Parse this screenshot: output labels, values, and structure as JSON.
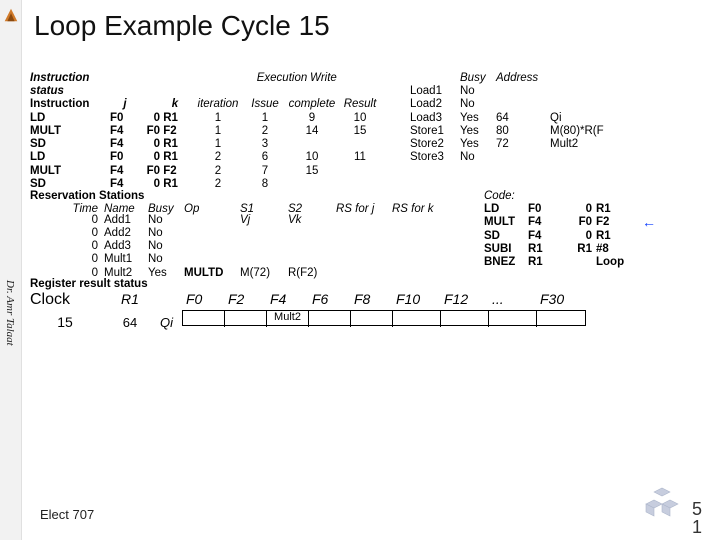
{
  "slide": {
    "title": "Loop Example Cycle 15",
    "author": "Dr. Amr Talaat",
    "course": "Elect 707",
    "page_top": "5",
    "page_bottom": "1"
  },
  "colors": {
    "accent_blue": "#0a3cff",
    "text": "#000000",
    "bg": "#ffffff",
    "stripe": "#f2f2f2"
  },
  "inst_status": {
    "section_label": "Instruction status",
    "headers_top": {
      "exec": "Execution",
      "write": "Write"
    },
    "headers": [
      "Instruction",
      "j",
      "k",
      "iteration",
      "Issue",
      "complete",
      "Result"
    ],
    "rows": [
      {
        "op": "LD",
        "dst": "F0",
        "j": "0",
        "k": "R1",
        "iter": "1",
        "issue": "1",
        "exec": "9",
        "write": "10"
      },
      {
        "op": "MULT",
        "dst": "F4",
        "j": "F0",
        "k": "F2",
        "iter": "1",
        "issue": "2",
        "exec": "14",
        "write": "15"
      },
      {
        "op": "SD",
        "dst": "F4",
        "j": "0",
        "k": "R1",
        "iter": "1",
        "issue": "3",
        "exec": "",
        "write": ""
      },
      {
        "op": "LD",
        "dst": "F0",
        "j": "0",
        "k": "R1",
        "iter": "2",
        "issue": "6",
        "exec": "10",
        "write": "11"
      },
      {
        "op": "MULT",
        "dst": "F4",
        "j": "F0",
        "k": "F2",
        "iter": "2",
        "issue": "7",
        "exec": "15",
        "write": ""
      },
      {
        "op": "SD",
        "dst": "F4",
        "j": "0",
        "k": "R1",
        "iter": "2",
        "issue": "8",
        "exec": "",
        "write": ""
      }
    ]
  },
  "load_store": {
    "headers": [
      "",
      "Busy",
      "Address",
      ""
    ],
    "rows": [
      {
        "name": "Load1",
        "busy": "No",
        "addr": "",
        "qi": ""
      },
      {
        "name": "Load2",
        "busy": "No",
        "addr": "",
        "qi": ""
      },
      {
        "name": "Load3",
        "busy": "Yes",
        "addr": "64",
        "qi": "Qi"
      },
      {
        "name": "Store1",
        "busy": "Yes",
        "addr": "80",
        "qi": "M(80)*R(F"
      },
      {
        "name": "Store2",
        "busy": "Yes",
        "addr": "72",
        "qi": "Mult2"
      },
      {
        "name": "Store3",
        "busy": "No",
        "addr": "",
        "qi": ""
      }
    ]
  },
  "res_stations": {
    "section_label": "Reservation Stations",
    "headers": {
      "time": "Time",
      "name": "Name",
      "busy": "Busy",
      "op": "Op",
      "s1": "S1",
      "s2": "S2",
      "rsj": "RS for j",
      "rsk": "RS for k",
      "vj": "Vj",
      "vk": "Vk"
    },
    "rows": [
      {
        "time": "0",
        "name": "Add1",
        "busy": "No",
        "op": "",
        "vj": "",
        "vk": "",
        "qj": "",
        "qk": ""
      },
      {
        "time": "0",
        "name": "Add2",
        "busy": "No",
        "op": "",
        "vj": "",
        "vk": "",
        "qj": "",
        "qk": ""
      },
      {
        "time": "0",
        "name": "Add3",
        "busy": "No",
        "op": "",
        "vj": "",
        "vk": "",
        "qj": "",
        "qk": ""
      },
      {
        "time": "0",
        "name": "Mult1",
        "busy": "No",
        "op": "",
        "vj": "",
        "vk": "",
        "qj": "",
        "qk": ""
      },
      {
        "time": "0",
        "name": "Mult2",
        "busy": "Yes",
        "op": "MULTD",
        "vj": "M(72)",
        "vk": "R(F2)",
        "qj": "",
        "qk": ""
      }
    ]
  },
  "code": {
    "header": "Code:",
    "rows": [
      {
        "op": "LD",
        "rd": "F0",
        "rs": "0",
        "rt": "R1"
      },
      {
        "op": "MULT",
        "rd": "F4",
        "rs": "F0",
        "rt": "F2"
      },
      {
        "op": "SD",
        "rd": "F4",
        "rs": "0",
        "rt": "R1"
      },
      {
        "op": "SUBI",
        "rd": "R1",
        "rs": "R1",
        "rt": "#8"
      },
      {
        "op": "BNEZ",
        "rd": "R1",
        "rs": "",
        "rt": "Loop"
      }
    ],
    "arrow_row": 1
  },
  "registers": {
    "section_label": "Register result status",
    "clock_label": "Clock",
    "clock": "15",
    "r1_label": "R1",
    "r1": "64",
    "fu_label": "Qi",
    "fregs": [
      "F0",
      "F2",
      "F4",
      "F6",
      "F8",
      "F10",
      "F12",
      "...",
      "F30"
    ],
    "fu": [
      "",
      "",
      "Mult2",
      "",
      "",
      "",
      "",
      "",
      ""
    ]
  }
}
